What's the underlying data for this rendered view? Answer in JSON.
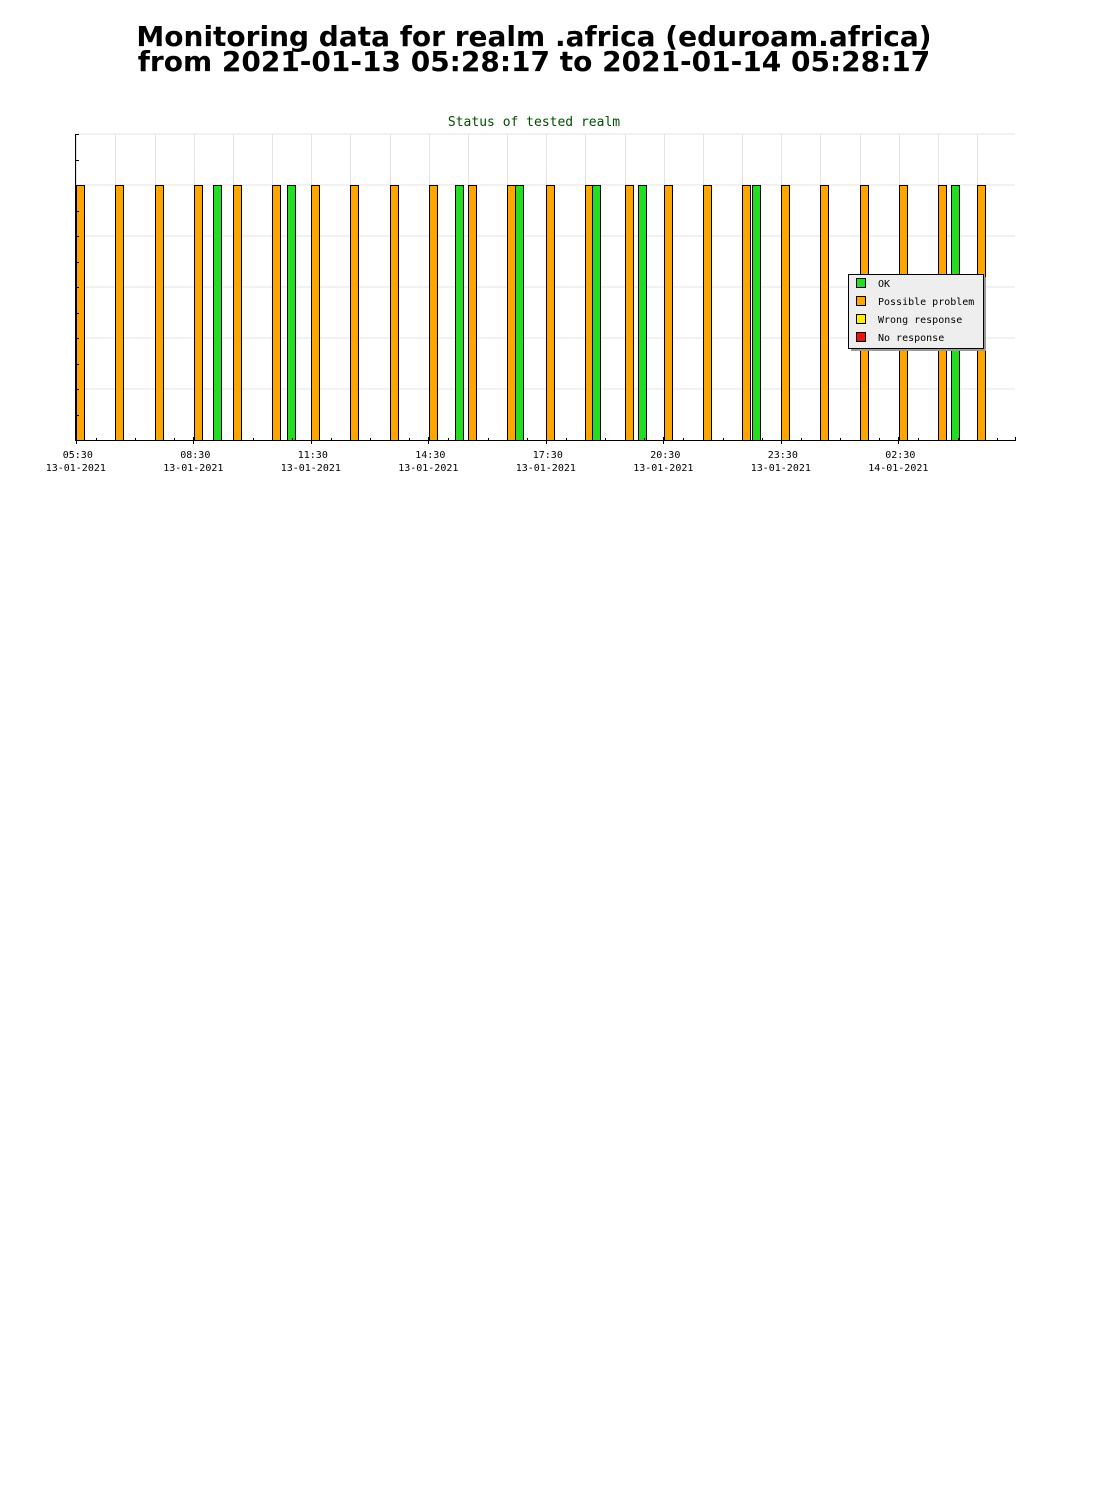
{
  "page": {
    "title_line1": "Monitoring data for realm .africa  (eduroam.africa)",
    "title_line2": "from 2021-01-13 05:28:17 to 2021-01-14 05:28:17"
  },
  "colors": {
    "ok": "#22dd22",
    "possible_problem": "#ffa500",
    "wrong_response": "#ffee00",
    "no_response": "#ee1111",
    "title_text": "#005000"
  },
  "chart_data": {
    "type": "bar",
    "title": "Status of tested realm",
    "x_range": [
      "2021-01-13 05:28",
      "2021-01-14 05:28"
    ],
    "x_ticks": [
      {
        "time": "05:30",
        "date": "13-01-2021"
      },
      {
        "time": "08:30",
        "date": "13-01-2021"
      },
      {
        "time": "11:30",
        "date": "13-01-2021"
      },
      {
        "time": "14:30",
        "date": "13-01-2021"
      },
      {
        "time": "17:30",
        "date": "13-01-2021"
      },
      {
        "time": "20:30",
        "date": "13-01-2021"
      },
      {
        "time": "23:30",
        "date": "13-01-2021"
      },
      {
        "time": "02:30",
        "date": "14-01-2021"
      }
    ],
    "legend": {
      "placement": "right",
      "entries": [
        {
          "key": "ok",
          "label": "OK"
        },
        {
          "key": "possible_problem",
          "label": "Possible problem"
        },
        {
          "key": "wrong_response",
          "label": "Wrong response"
        },
        {
          "key": "no_response",
          "label": "No response"
        }
      ]
    },
    "grid": true,
    "bars": [
      {
        "time": "2021-01-13 05:30",
        "status": "possible_problem"
      },
      {
        "time": "2021-01-13 06:30",
        "status": "possible_problem"
      },
      {
        "time": "2021-01-13 07:30",
        "status": "possible_problem"
      },
      {
        "time": "2021-01-13 08:30",
        "status": "possible_problem"
      },
      {
        "time": "2021-01-13 09:00",
        "status": "ok"
      },
      {
        "time": "2021-01-13 09:30",
        "status": "possible_problem"
      },
      {
        "time": "2021-01-13 10:30",
        "status": "possible_problem"
      },
      {
        "time": "2021-01-13 10:53",
        "status": "ok"
      },
      {
        "time": "2021-01-13 11:30",
        "status": "possible_problem"
      },
      {
        "time": "2021-01-13 12:30",
        "status": "possible_problem"
      },
      {
        "time": "2021-01-13 13:30",
        "status": "possible_problem"
      },
      {
        "time": "2021-01-13 14:30",
        "status": "possible_problem"
      },
      {
        "time": "2021-01-13 15:10",
        "status": "ok"
      },
      {
        "time": "2021-01-13 15:30",
        "status": "possible_problem"
      },
      {
        "time": "2021-01-13 16:30",
        "status": "possible_problem"
      },
      {
        "time": "2021-01-13 16:42",
        "status": "ok"
      },
      {
        "time": "2021-01-13 17:30",
        "status": "possible_problem"
      },
      {
        "time": "2021-01-13 18:30",
        "status": "possible_problem"
      },
      {
        "time": "2021-01-13 18:40",
        "status": "ok"
      },
      {
        "time": "2021-01-13 19:30",
        "status": "possible_problem"
      },
      {
        "time": "2021-01-13 19:51",
        "status": "ok"
      },
      {
        "time": "2021-01-13 20:30",
        "status": "possible_problem"
      },
      {
        "time": "2021-01-13 21:30",
        "status": "possible_problem"
      },
      {
        "time": "2021-01-13 22:30",
        "status": "possible_problem"
      },
      {
        "time": "2021-01-13 22:45",
        "status": "ok"
      },
      {
        "time": "2021-01-13 23:30",
        "status": "possible_problem"
      },
      {
        "time": "2021-01-14 00:30",
        "status": "possible_problem"
      },
      {
        "time": "2021-01-14 01:30",
        "status": "possible_problem"
      },
      {
        "time": "2021-01-14 02:30",
        "status": "possible_problem"
      },
      {
        "time": "2021-01-14 03:30",
        "status": "possible_problem"
      },
      {
        "time": "2021-01-14 03:50",
        "status": "ok"
      },
      {
        "time": "2021-01-14 04:30",
        "status": "possible_problem"
      }
    ]
  }
}
